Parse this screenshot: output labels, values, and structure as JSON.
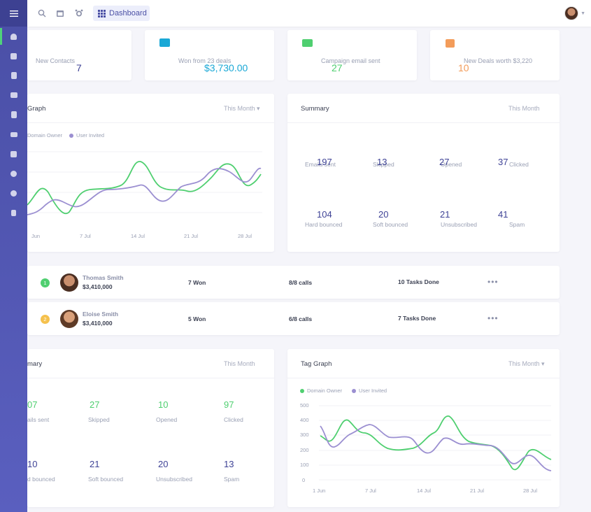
{
  "topbar": {
    "dashboard_label": "Dashboard"
  },
  "icons": {
    "menu": "hamburger-icon",
    "search": "search-icon",
    "calendar": "calendar-icon",
    "alarm": "alarm-icon"
  },
  "colors": {
    "sidebar": "#4a4fa6",
    "accent_purple": "#3f4396",
    "green": "#4fcf70",
    "blue": "#1aa8d6",
    "orange": "#f39c5a",
    "lavender": "#9b8fd1"
  },
  "stats": [
    {
      "label": "New Contacts",
      "value": "7"
    },
    {
      "label": "Won from 23 deals",
      "value": "$3,730.00"
    },
    {
      "label": "Campaign email sent",
      "value": "27"
    },
    {
      "label": "New Deals worth $3,220",
      "value": "10"
    }
  ],
  "graph1": {
    "title": "Graph",
    "filter": "This Month",
    "legend": [
      "Domain Owner",
      "User Invited"
    ],
    "x_labels": [
      "Jun",
      "7 Jul",
      "14 Jul",
      "21 Jul",
      "28 Jul"
    ]
  },
  "summary1": {
    "title": "Summary",
    "filter": "This Month",
    "items": [
      {
        "value": "197",
        "label": "Emails sent"
      },
      {
        "value": "13",
        "label": "Skipped"
      },
      {
        "value": "27",
        "label": "Opened"
      },
      {
        "value": "37",
        "label": "Clicked"
      },
      {
        "value": "104",
        "label": "Hard bounced"
      },
      {
        "value": "20",
        "label": "Soft bounced"
      },
      {
        "value": "21",
        "label": "Unsubscribed"
      },
      {
        "value": "41",
        "label": "Spam"
      }
    ]
  },
  "leaders": [
    {
      "rank": "1",
      "name": "Thomas Smith",
      "amount": "$3,410,000",
      "won": "7 Won",
      "calls": "8/8 calls",
      "tasks": "10 Tasks Done",
      "more": "•••"
    },
    {
      "rank": "2",
      "name": "Eloise Smith",
      "amount": "$3,410,000",
      "won": "5 Won",
      "calls": "6/8 calls",
      "tasks": "7 Tasks Done",
      "more": "•••"
    }
  ],
  "summary2": {
    "title": "mary",
    "filter": "This Month",
    "items": [
      {
        "value": "07",
        "label": "ails sent"
      },
      {
        "value": "27",
        "label": "Skipped"
      },
      {
        "value": "10",
        "label": "Opened"
      },
      {
        "value": "97",
        "label": "Clicked"
      },
      {
        "value": "10",
        "label": "d bounced"
      },
      {
        "value": "21",
        "label": "Soft bounced"
      },
      {
        "value": "20",
        "label": "Unsubscribed"
      },
      {
        "value": "13",
        "label": "Spam"
      }
    ]
  },
  "tag_graph": {
    "title": "Tag Graph",
    "filter": "This Month",
    "legend": [
      "Domain Owner",
      "User Invited"
    ],
    "y_labels": [
      "500",
      "400",
      "300",
      "200",
      "100",
      "0"
    ],
    "x_labels": [
      "1 Jun",
      "7 Jul",
      "14 Jul",
      "21 Jul",
      "28 Jul"
    ]
  }
}
